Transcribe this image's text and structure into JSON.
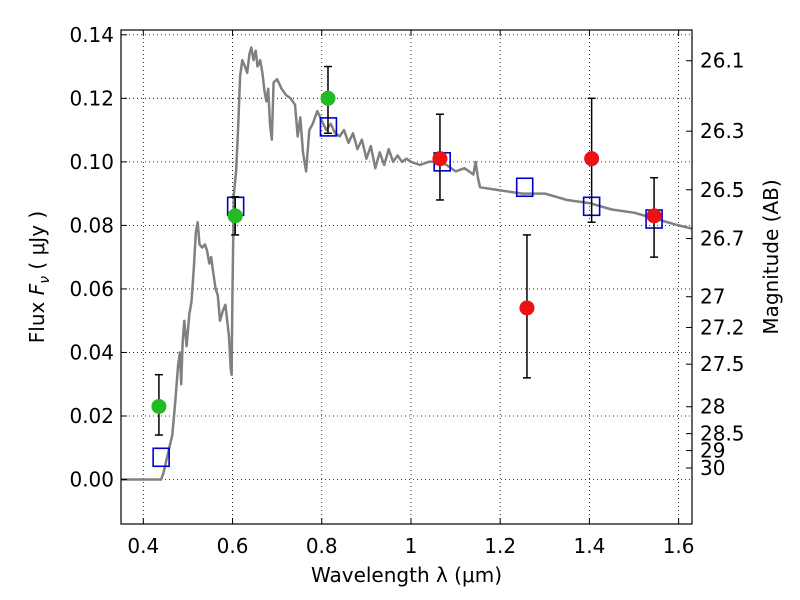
{
  "chart_data": {
    "type": "scatter",
    "title": "",
    "xlabel": "Wavelength  λ (μm)",
    "ylabel": "Flux  F_ν  ( μJy )",
    "y2label": "Magnitude (AB)",
    "xlim": [
      0.35,
      1.63
    ],
    "ylim": [
      -0.014,
      0.1415
    ],
    "grid": true,
    "x_ticks": [
      {
        "value": 0.4,
        "label": "0.4"
      },
      {
        "value": 0.6,
        "label": "0.6"
      },
      {
        "value": 0.8,
        "label": "0.8"
      },
      {
        "value": 1.0,
        "label": "1"
      },
      {
        "value": 1.2,
        "label": "1.2"
      },
      {
        "value": 1.4,
        "label": "1.4"
      },
      {
        "value": 1.6,
        "label": "1.6"
      }
    ],
    "y_ticks": [
      {
        "value": 0.0,
        "label": "0.00"
      },
      {
        "value": 0.02,
        "label": "0.02"
      },
      {
        "value": 0.04,
        "label": "0.04"
      },
      {
        "value": 0.06,
        "label": "0.06"
      },
      {
        "value": 0.08,
        "label": "0.08"
      },
      {
        "value": 0.1,
        "label": "0.10"
      },
      {
        "value": 0.12,
        "label": "0.12"
      },
      {
        "value": 0.14,
        "label": "0.14"
      }
    ],
    "y2_ticks": [
      {
        "label": "26.1",
        "mag": 26.1
      },
      {
        "label": "26.3",
        "mag": 26.3
      },
      {
        "label": "26.5",
        "mag": 26.5
      },
      {
        "label": "26.7",
        "mag": 26.7
      },
      {
        "label": "27",
        "mag": 27
      },
      {
        "label": "27.2",
        "mag": 27.2
      },
      {
        "label": "27.5",
        "mag": 27.5
      },
      {
        "label": "28",
        "mag": 28
      },
      {
        "label": "28.5",
        "mag": 28.5
      },
      {
        "label": "29",
        "mag": 29
      },
      {
        "label": "30",
        "mag": 30
      }
    ],
    "colors": {
      "template": "#808080",
      "model": "#0000cc",
      "green": "#22bb22",
      "red": "#ee1111",
      "errorbar": "#000000"
    },
    "series": [
      {
        "kind": "line",
        "points": [
          [
            0.35,
            0.0
          ],
          [
            0.44,
            0.0
          ],
          [
            0.445,
            0.002
          ],
          [
            0.455,
            0.008
          ],
          [
            0.465,
            0.014
          ],
          [
            0.472,
            0.025
          ],
          [
            0.478,
            0.036
          ],
          [
            0.482,
            0.04
          ],
          [
            0.485,
            0.03
          ],
          [
            0.488,
            0.043
          ],
          [
            0.492,
            0.05
          ],
          [
            0.497,
            0.042
          ],
          [
            0.503,
            0.052
          ],
          [
            0.508,
            0.056
          ],
          [
            0.513,
            0.066
          ],
          [
            0.518,
            0.078
          ],
          [
            0.522,
            0.081
          ],
          [
            0.526,
            0.074
          ],
          [
            0.532,
            0.073
          ],
          [
            0.538,
            0.074
          ],
          [
            0.543,
            0.072
          ],
          [
            0.548,
            0.068
          ],
          [
            0.552,
            0.07
          ],
          [
            0.557,
            0.065
          ],
          [
            0.562,
            0.06
          ],
          [
            0.567,
            0.058
          ],
          [
            0.572,
            0.05
          ],
          [
            0.578,
            0.053
          ],
          [
            0.584,
            0.055
          ],
          [
            0.588,
            0.05
          ],
          [
            0.592,
            0.045
          ],
          [
            0.596,
            0.035
          ],
          [
            0.598,
            0.033
          ],
          [
            0.6,
            0.06
          ],
          [
            0.603,
            0.09
          ],
          [
            0.608,
            0.097
          ],
          [
            0.613,
            0.112
          ],
          [
            0.617,
            0.127
          ],
          [
            0.622,
            0.132
          ],
          [
            0.628,
            0.13
          ],
          [
            0.633,
            0.128
          ],
          [
            0.638,
            0.134
          ],
          [
            0.642,
            0.136
          ],
          [
            0.647,
            0.132
          ],
          [
            0.652,
            0.135
          ],
          [
            0.656,
            0.13
          ],
          [
            0.662,
            0.132
          ],
          [
            0.667,
            0.128
          ],
          [
            0.672,
            0.122
          ],
          [
            0.676,
            0.119
          ],
          [
            0.68,
            0.123
          ],
          [
            0.684,
            0.112
          ],
          [
            0.688,
            0.107
          ],
          [
            0.692,
            0.125
          ],
          [
            0.7,
            0.126
          ],
          [
            0.71,
            0.123
          ],
          [
            0.72,
            0.121
          ],
          [
            0.73,
            0.12
          ],
          [
            0.74,
            0.118
          ],
          [
            0.746,
            0.108
          ],
          [
            0.752,
            0.114
          ],
          [
            0.758,
            0.103
          ],
          [
            0.765,
            0.097
          ],
          [
            0.772,
            0.11
          ],
          [
            0.78,
            0.112
          ],
          [
            0.79,
            0.116
          ],
          [
            0.8,
            0.113
          ],
          [
            0.81,
            0.11
          ],
          [
            0.82,
            0.112
          ],
          [
            0.83,
            0.109
          ],
          [
            0.84,
            0.108
          ],
          [
            0.85,
            0.11
          ],
          [
            0.86,
            0.106
          ],
          [
            0.87,
            0.109
          ],
          [
            0.88,
            0.104
          ],
          [
            0.89,
            0.107
          ],
          [
            0.9,
            0.101
          ],
          [
            0.91,
            0.105
          ],
          [
            0.92,
            0.098
          ],
          [
            0.93,
            0.103
          ],
          [
            0.94,
            0.099
          ],
          [
            0.95,
            0.104
          ],
          [
            0.96,
            0.1
          ],
          [
            0.97,
            0.102
          ],
          [
            0.98,
            0.1
          ],
          [
            0.99,
            0.101
          ],
          [
            1.0,
            0.1
          ],
          [
            1.02,
            0.099
          ],
          [
            1.04,
            0.1
          ],
          [
            1.06,
            0.1
          ],
          [
            1.08,
            0.099
          ],
          [
            1.1,
            0.097
          ],
          [
            1.12,
            0.098
          ],
          [
            1.14,
            0.096
          ],
          [
            1.145,
            0.1
          ],
          [
            1.15,
            0.095
          ],
          [
            1.155,
            0.092
          ],
          [
            1.2,
            0.091
          ],
          [
            1.25,
            0.09
          ],
          [
            1.3,
            0.09
          ],
          [
            1.35,
            0.088
          ],
          [
            1.4,
            0.087
          ],
          [
            1.45,
            0.085
          ],
          [
            1.5,
            0.084
          ],
          [
            1.55,
            0.082
          ],
          [
            1.6,
            0.08
          ],
          [
            1.63,
            0.079
          ]
        ]
      },
      {
        "kind": "model_squares",
        "points": [
          [
            0.44,
            0.007
          ],
          [
            0.607,
            0.086
          ],
          [
            0.815,
            0.111
          ],
          [
            1.07,
            0.1
          ],
          [
            1.255,
            0.092
          ],
          [
            1.405,
            0.086
          ],
          [
            1.545,
            0.082
          ]
        ]
      },
      {
        "kind": "green_points",
        "points": [
          {
            "x": 0.435,
            "y": 0.023,
            "ylo": 0.014,
            "yhi": 0.033
          },
          {
            "x": 0.606,
            "y": 0.083,
            "ylo": 0.077,
            "yhi": 0.089
          },
          {
            "x": 0.814,
            "y": 0.12,
            "ylo": 0.109,
            "yhi": 0.13
          }
        ]
      },
      {
        "kind": "red_points",
        "points": [
          {
            "x": 1.065,
            "y": 0.101,
            "ylo": 0.088,
            "yhi": 0.115
          },
          {
            "x": 1.26,
            "y": 0.054,
            "ylo": 0.032,
            "yhi": 0.077
          },
          {
            "x": 1.405,
            "y": 0.101,
            "ylo": 0.081,
            "yhi": 0.12
          },
          {
            "x": 1.545,
            "y": 0.083,
            "ylo": 0.07,
            "yhi": 0.095
          }
        ]
      }
    ]
  }
}
